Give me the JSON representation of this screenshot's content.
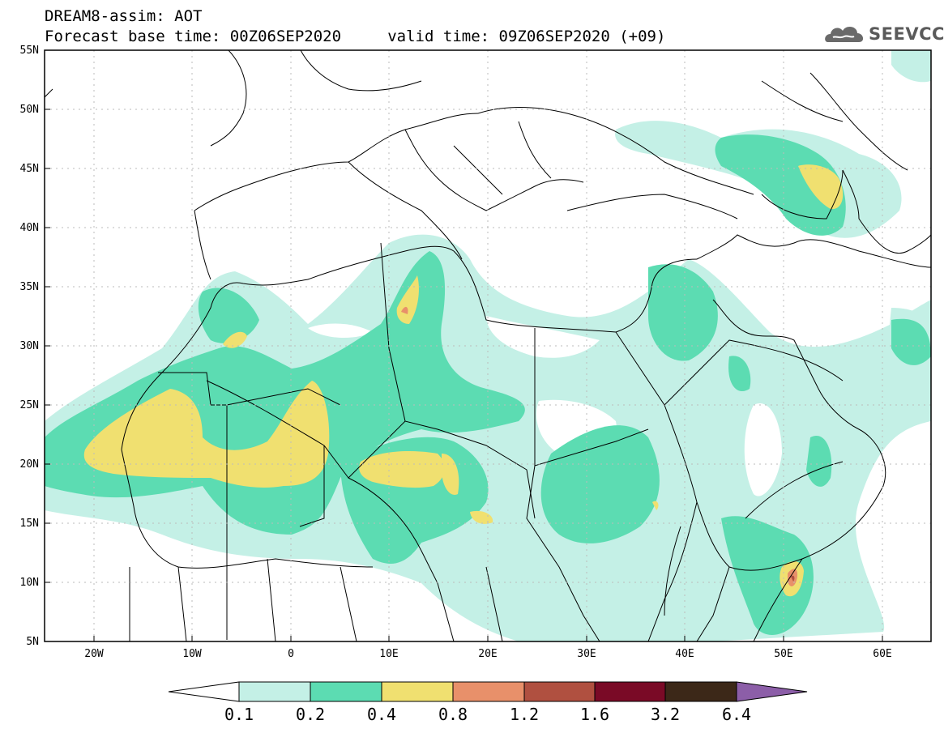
{
  "header": {
    "title_line1": "DREAM8-assim: AOT",
    "title_line2": "Forecast base time: 00Z06SEP2020     valid time: 09Z06SEP2020 (+09)",
    "logo_text": "SEEVCCC"
  },
  "map": {
    "lat_labels": [
      "55N",
      "50N",
      "45N",
      "40N",
      "35N",
      "30N",
      "25N",
      "20N",
      "15N",
      "10N",
      "5N"
    ],
    "lat_values": [
      55,
      50,
      45,
      40,
      35,
      30,
      25,
      20,
      15,
      10,
      5
    ],
    "lon_labels": [
      "20W",
      "10W",
      "0",
      "10E",
      "20E",
      "30E",
      "40E",
      "50E",
      "60E"
    ],
    "lon_values": [
      -20,
      -10,
      0,
      10,
      20,
      30,
      40,
      50,
      60
    ],
    "lon_range": [
      -25,
      65
    ],
    "lat_range": [
      5,
      55
    ],
    "variable": "AOT"
  },
  "colorbar": {
    "levels": [
      "0.1",
      "0.2",
      "0.4",
      "0.8",
      "1.2",
      "1.6",
      "3.2",
      "6.4"
    ],
    "colors": {
      "below": "#ffffff",
      "c1": "#c4f0e6",
      "c2": "#5cdcb2",
      "c3": "#f0e070",
      "c4": "#e8906a",
      "c5": "#b05040",
      "c6": "#7a0a26",
      "c7": "#3c2818",
      "above": "#8c5ea8"
    }
  }
}
